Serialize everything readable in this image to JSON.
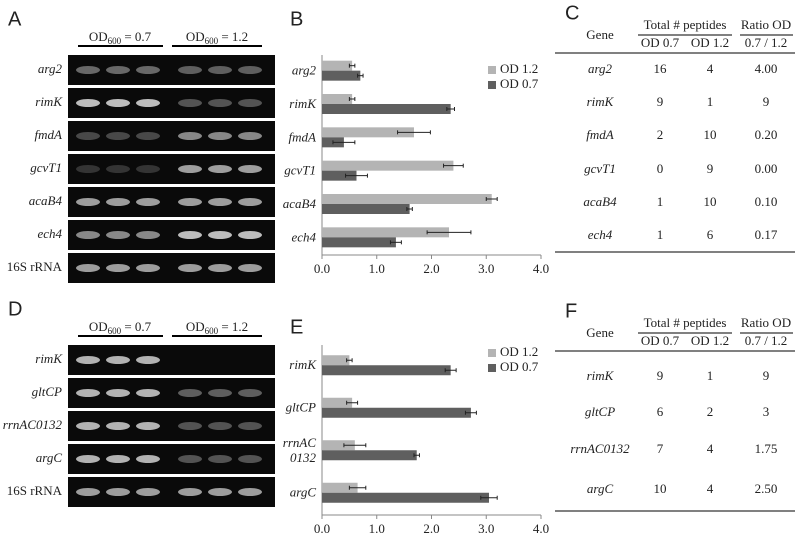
{
  "gels": [
    {
      "label": "A",
      "conditions": [
        {
          "od": "OD",
          "sub": "600",
          "rest": " = 0.7"
        },
        {
          "od": "OD",
          "sub": "600",
          "rest": " = 1.2"
        }
      ],
      "rows": [
        "arg2",
        "rimK",
        "fmdA",
        "gcvT1",
        "acaB4",
        "ech4",
        "16S rRNA"
      ]
    },
    {
      "label": "D",
      "conditions": [
        {
          "od": "OD",
          "sub": "600",
          "rest": " = 0.7"
        },
        {
          "od": "OD",
          "sub": "600",
          "rest": " = 1.2"
        }
      ],
      "rows": [
        "rimK",
        "gltCP",
        "rrnAC0132",
        "argC",
        "16S rRNA"
      ]
    }
  ],
  "chart_data": [
    {
      "type": "hbar",
      "label": "B",
      "categories": [
        "arg2",
        "rimK",
        "fmdA",
        "gcvT1",
        "acaB4",
        "ech4"
      ],
      "series": [
        {
          "name": "OD 1.2",
          "color": "#b4b4b4",
          "values": [
            0.55,
            0.55,
            1.68,
            2.4,
            3.1,
            2.32
          ],
          "errors": [
            0.05,
            0.05,
            0.3,
            0.18,
            0.1,
            0.4
          ]
        },
        {
          "name": "OD 0.7",
          "color": "#5f5f5f",
          "values": [
            0.7,
            2.35,
            0.4,
            0.63,
            1.6,
            1.35
          ],
          "errors": [
            0.05,
            0.07,
            0.2,
            0.2,
            0.05,
            0.1
          ]
        }
      ],
      "xlim": [
        0,
        4
      ],
      "xticks": [
        {
          "value": 0,
          "label": "0.0"
        },
        {
          "value": 1,
          "label": "1.0"
        },
        {
          "value": 2,
          "label": "2.0"
        },
        {
          "value": 3,
          "label": "3.0"
        },
        {
          "value": 4,
          "label": "4.0"
        }
      ],
      "legend": "upper right"
    },
    {
      "type": "hbar",
      "label": "E",
      "categories": [
        "rimK",
        "gltCP",
        "rrnAC\n0132",
        "argC"
      ],
      "series": [
        {
          "name": "OD 1.2",
          "color": "#b4b4b4",
          "values": [
            0.5,
            0.55,
            0.6,
            0.65
          ],
          "errors": [
            0.05,
            0.1,
            0.2,
            0.15
          ]
        },
        {
          "name": "OD 0.7",
          "color": "#5f5f5f",
          "values": [
            2.35,
            2.72,
            1.73,
            3.05
          ],
          "errors": [
            0.1,
            0.1,
            0.05,
            0.15
          ]
        }
      ],
      "xlim": [
        0,
        4
      ],
      "xticks": [
        {
          "value": 0,
          "label": "0.0"
        },
        {
          "value": 1,
          "label": "1.0"
        },
        {
          "value": 2,
          "label": "2.0"
        },
        {
          "value": 3,
          "label": "3.0"
        },
        {
          "value": 4,
          "label": "4.0"
        }
      ],
      "legend": "upper right"
    }
  ],
  "tables": [
    {
      "label": "C",
      "gene": "Gene",
      "group": "Total # peptides",
      "ratio": "Ratio OD",
      "sub": [
        "OD 0.7",
        "OD 1.2",
        "0.7 / 1.2"
      ],
      "rows": [
        [
          "arg2",
          "16",
          "4",
          "4.00"
        ],
        [
          "rimK",
          "9",
          "1",
          "9"
        ],
        [
          "fmdA",
          "2",
          "10",
          "0.20"
        ],
        [
          "gcvT1",
          "0",
          "9",
          "0.00"
        ],
        [
          "acaB4",
          "1",
          "10",
          "0.10"
        ],
        [
          "ech4",
          "1",
          "6",
          "0.17"
        ]
      ]
    },
    {
      "label": "F",
      "gene": "Gene",
      "group": "Total # peptides",
      "ratio": "Ratio OD",
      "sub": [
        "OD 0.7",
        "OD 1.2",
        "0.7 / 1.2"
      ],
      "rows": [
        [
          "rimK",
          "9",
          "1",
          "9"
        ],
        [
          "gltCP",
          "6",
          "2",
          "3"
        ],
        [
          "rrnAC0132",
          "7",
          "4",
          "1.75"
        ],
        [
          "argC",
          "10",
          "4",
          "2.50"
        ]
      ]
    }
  ]
}
